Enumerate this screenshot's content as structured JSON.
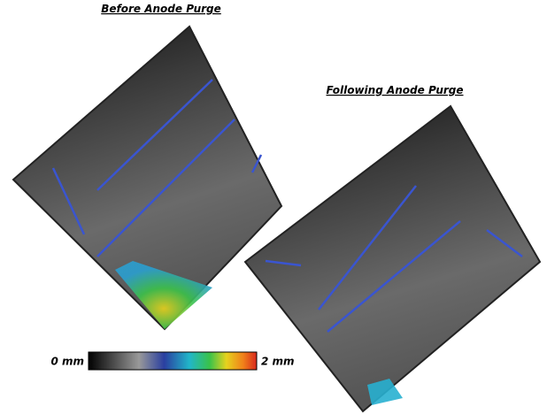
{
  "panels": [
    {
      "title": "Before Anode Purge"
    },
    {
      "title": "Following Anode Purge"
    }
  ],
  "colorbar": {
    "min_label": "0 mm",
    "max_label": "2 mm"
  }
}
